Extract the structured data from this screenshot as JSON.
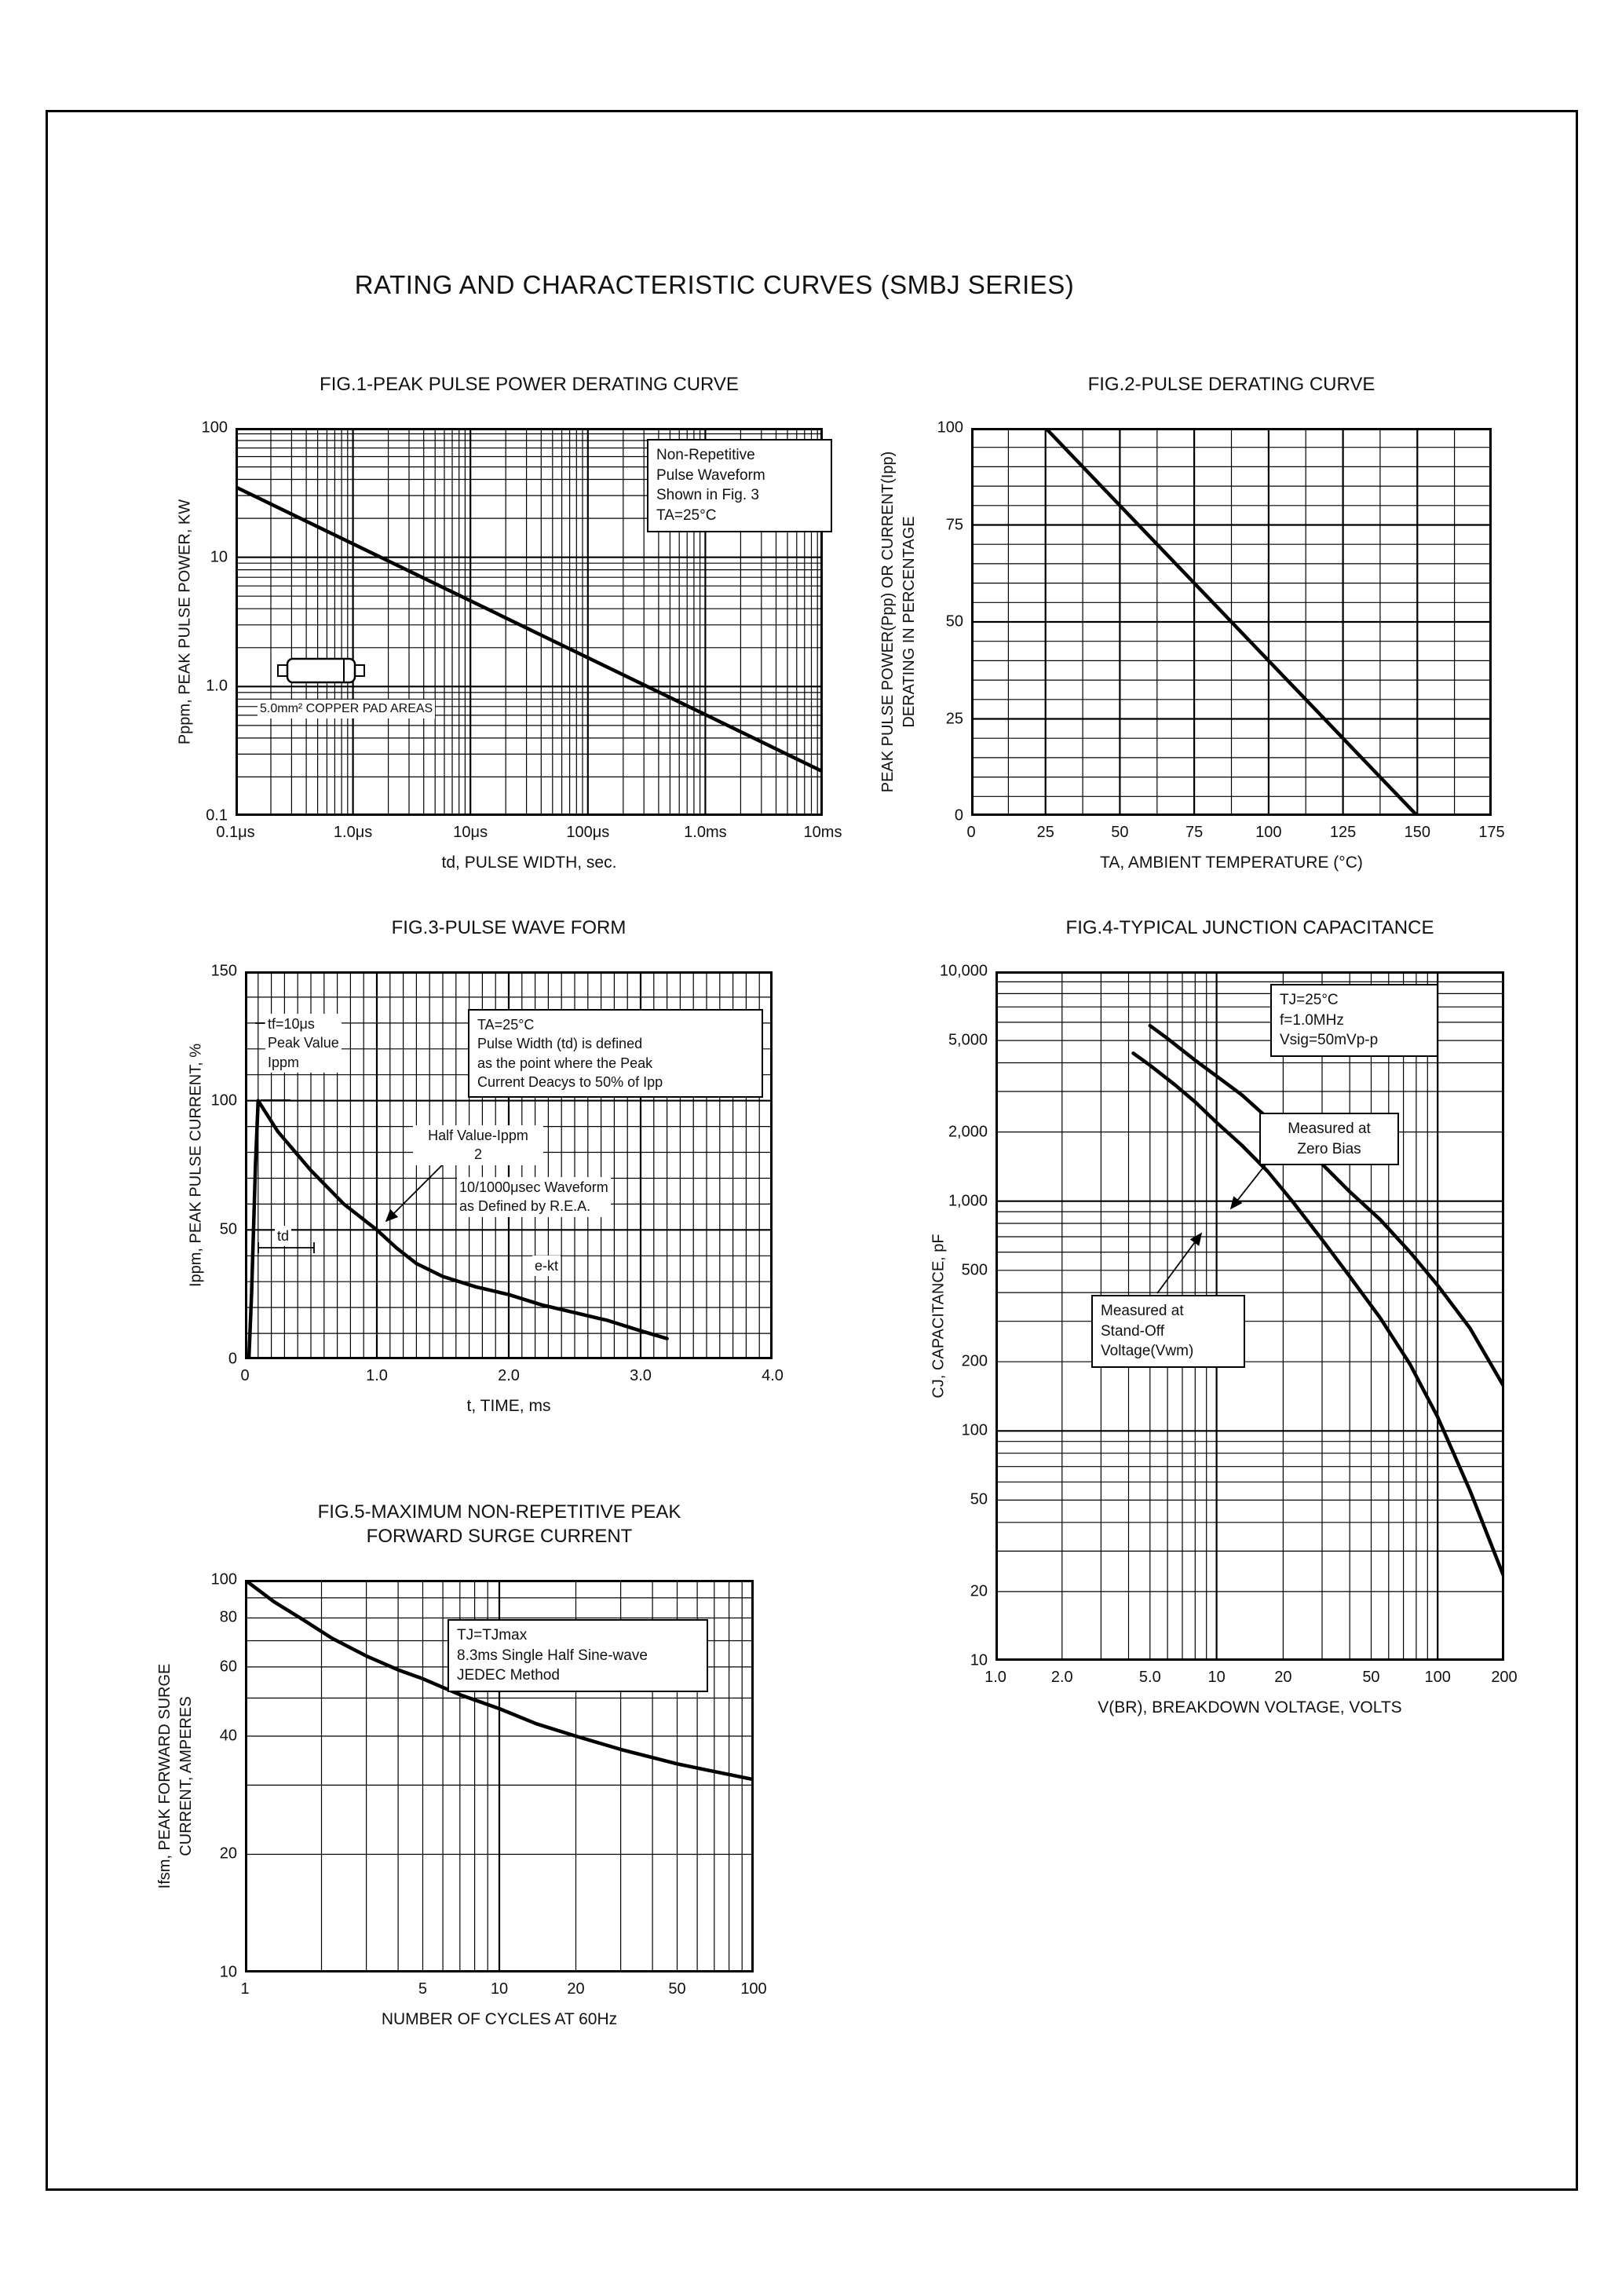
{
  "page": {
    "title": "RATING AND CHARACTERISTIC CURVES (SMBJ SERIES)"
  },
  "chart_data": [
    {
      "id": "fig1",
      "type": "line",
      "title": "FIG.1-PEAK PULSE POWER DERATING CURVE",
      "xlabel": "td, PULSE WIDTH, sec.",
      "ylabel": "Pppm, PEAK PULSE POWER, KW",
      "xscale": "log",
      "yscale": "log",
      "xlim": [
        1e-07,
        0.01
      ],
      "ylim": [
        0.1,
        100
      ],
      "grid": "on",
      "xticks": [
        {
          "v": 1e-07,
          "label": "0.1μs"
        },
        {
          "v": 1e-06,
          "label": "1.0μs"
        },
        {
          "v": 1e-05,
          "label": "10μs"
        },
        {
          "v": 0.0001,
          "label": "100μs"
        },
        {
          "v": 0.001,
          "label": "1.0ms"
        },
        {
          "v": 0.01,
          "label": "10ms"
        }
      ],
      "yticks": [
        {
          "v": 100,
          "label": "100"
        },
        {
          "v": 10,
          "label": "10"
        },
        {
          "v": 1,
          "label": "1.0"
        },
        {
          "v": 0.1,
          "label": "0.1"
        }
      ],
      "series": [
        {
          "name": "peak-pulse-power",
          "points": [
            [
              1e-07,
              35
            ],
            [
              0.01,
              0.22
            ]
          ]
        }
      ],
      "annotations": [
        {
          "name": "waveform-note",
          "text": "Non-Repetitive\nPulse Waveform\nShown in Fig. 3\nTA=25°C"
        },
        {
          "name": "pad-area-note",
          "text": "5.0mm² COPPER PAD AREAS"
        }
      ]
    },
    {
      "id": "fig2",
      "type": "line",
      "title": "FIG.2-PULSE DERATING CURVE",
      "xlabel": "TA, AMBIENT TEMPERATURE (°C)",
      "ylabel": "PEAK PULSE POWER(Ppp) OR CURRENT(Ipp)\nDERATING IN PERCENTAGE",
      "xscale": "linear",
      "yscale": "linear",
      "xlim": [
        0,
        175
      ],
      "ylim": [
        0,
        100
      ],
      "xgrid_step": 12.5,
      "ygrid_step": 5,
      "grid": "on",
      "xticks": [
        {
          "v": 0,
          "label": "0"
        },
        {
          "v": 25,
          "label": "25"
        },
        {
          "v": 50,
          "label": "50"
        },
        {
          "v": 75,
          "label": "75"
        },
        {
          "v": 100,
          "label": "100"
        },
        {
          "v": 125,
          "label": "125"
        },
        {
          "v": 150,
          "label": "150"
        },
        {
          "v": 175,
          "label": "175"
        }
      ],
      "yticks": [
        {
          "v": 100,
          "label": "100"
        },
        {
          "v": 75,
          "label": "75"
        },
        {
          "v": 50,
          "label": "50"
        },
        {
          "v": 25,
          "label": "25"
        },
        {
          "v": 0,
          "label": "0"
        }
      ],
      "series": [
        {
          "name": "derating",
          "points": [
            [
              0,
              100
            ],
            [
              25,
              100
            ],
            [
              150,
              0
            ]
          ]
        }
      ],
      "annotations": []
    },
    {
      "id": "fig3",
      "type": "line",
      "title": "FIG.3-PULSE WAVE FORM",
      "xlabel": "t, TIME, ms",
      "ylabel": "Ippm, PEAK PULSE CURRENT, %",
      "xscale": "linear",
      "yscale": "linear",
      "xlim": [
        0,
        4
      ],
      "ylim": [
        0,
        150
      ],
      "xgrid_step": 0.1,
      "ygrid_step": 10,
      "grid": "on",
      "xticks": [
        {
          "v": 0,
          "label": "0"
        },
        {
          "v": 1,
          "label": "1.0"
        },
        {
          "v": 2,
          "label": "2.0"
        },
        {
          "v": 3,
          "label": "3.0"
        },
        {
          "v": 4,
          "label": "4.0"
        }
      ],
      "yticks": [
        {
          "v": 150,
          "label": "150"
        },
        {
          "v": 100,
          "label": "100"
        },
        {
          "v": 50,
          "label": "50"
        },
        {
          "v": 0,
          "label": "0"
        }
      ],
      "series": [
        {
          "name": "pulse-waveform",
          "points": [
            [
              0.03,
              0
            ],
            [
              0.05,
              25
            ],
            [
              0.08,
              75
            ],
            [
              0.1,
              100
            ],
            [
              0.25,
              88
            ],
            [
              0.5,
              73
            ],
            [
              0.75,
              60
            ],
            [
              1,
              50
            ],
            [
              1.15,
              43
            ],
            [
              1.3,
              37
            ],
            [
              1.5,
              32
            ],
            [
              1.75,
              28
            ],
            [
              2,
              25
            ],
            [
              2.25,
              21
            ],
            [
              2.5,
              18
            ],
            [
              2.75,
              15
            ],
            [
              3,
              11
            ],
            [
              3.2,
              8
            ]
          ]
        }
      ],
      "annotations": [
        {
          "name": "tf-note",
          "text": "tf=10μs\nPeak Value\nIppm"
        },
        {
          "name": "pulse-width-note",
          "text": "TA=25°C\nPulse Width (td) is defined\nas the point where the Peak\nCurrent Deacys to 50% of Ipp"
        },
        {
          "name": "half-value-note",
          "text": "Half Value-Ippm\n2"
        },
        {
          "name": "rea-note",
          "text": "10/1000μsec Waveform\nas Defined by R.E.A."
        },
        {
          "name": "td-note",
          "text": "td"
        },
        {
          "name": "decay-note",
          "text": "e-kt"
        }
      ]
    },
    {
      "id": "fig4",
      "type": "line",
      "title": "FIG.4-TYPICAL JUNCTION CAPACITANCE",
      "xlabel": "V(BR), BREAKDOWN VOLTAGE, VOLTS",
      "ylabel": "CJ, CAPACITANCE, pF",
      "xscale": "log",
      "yscale": "log",
      "xlim": [
        1,
        200
      ],
      "ylim": [
        10,
        10000
      ],
      "grid": "on",
      "xticks": [
        {
          "v": 1,
          "label": "1.0"
        },
        {
          "v": 2,
          "label": "2.0"
        },
        {
          "v": 5,
          "label": "5.0"
        },
        {
          "v": 10,
          "label": "10"
        },
        {
          "v": 20,
          "label": "20"
        },
        {
          "v": 50,
          "label": "50"
        },
        {
          "v": 100,
          "label": "100"
        },
        {
          "v": 200,
          "label": "200"
        }
      ],
      "yticks": [
        {
          "v": 10000,
          "label": "10,000"
        },
        {
          "v": 5000,
          "label": "5,000"
        },
        {
          "v": 2000,
          "label": "2,000"
        },
        {
          "v": 1000,
          "label": "1,000"
        },
        {
          "v": 500,
          "label": "500"
        },
        {
          "v": 200,
          "label": "200"
        },
        {
          "v": 100,
          "label": "100"
        },
        {
          "v": 50,
          "label": "50"
        },
        {
          "v": 20,
          "label": "20"
        },
        {
          "v": 10,
          "label": "10"
        }
      ],
      "series": [
        {
          "name": "zero-bias",
          "points": [
            [
              5,
              5800
            ],
            [
              6,
              5100
            ],
            [
              8,
              4100
            ],
            [
              10,
              3500
            ],
            [
              13,
              2900
            ],
            [
              17,
              2300
            ],
            [
              22,
              1900
            ],
            [
              30,
              1450
            ],
            [
              40,
              1100
            ],
            [
              55,
              830
            ],
            [
              75,
              600
            ],
            [
              100,
              430
            ],
            [
              140,
              280
            ],
            [
              200,
              155
            ]
          ]
        },
        {
          "name": "stand-off-voltage",
          "points": [
            [
              4.2,
              4400
            ],
            [
              5,
              3900
            ],
            [
              6.5,
              3200
            ],
            [
              8,
              2700
            ],
            [
              10,
              2200
            ],
            [
              13,
              1750
            ],
            [
              17,
              1350
            ],
            [
              22,
              1000
            ],
            [
              30,
              680
            ],
            [
              40,
              470
            ],
            [
              55,
              310
            ],
            [
              75,
              195
            ],
            [
              100,
              115
            ],
            [
              140,
              55
            ],
            [
              200,
              23
            ]
          ]
        }
      ],
      "annotations": [
        {
          "name": "conditions-note",
          "text": "TJ=25°C\nf=1.0MHz\nVsig=50mVp-p"
        },
        {
          "name": "zero-bias-note",
          "text": "Measured at\nZero Bias"
        },
        {
          "name": "stand-off-note",
          "text": "Measured at\nStand-Off\nVoltage(Vwm)"
        }
      ]
    },
    {
      "id": "fig5",
      "type": "line",
      "title": "FIG.5-MAXIMUM NON-REPETITIVE PEAK\nFORWARD SURGE CURRENT",
      "xlabel": "NUMBER OF CYCLES AT 60Hz",
      "ylabel": "Ifsm, PEAK FORWARD SURGE\nCURRENT, AMPERES",
      "xscale": "log",
      "yscale": "log",
      "xlim": [
        1,
        100
      ],
      "ylim": [
        10,
        100
      ],
      "grid": "on",
      "xticks": [
        {
          "v": 1,
          "label": "1"
        },
        {
          "v": 5,
          "label": "5"
        },
        {
          "v": 10,
          "label": "10"
        },
        {
          "v": 20,
          "label": "20"
        },
        {
          "v": 50,
          "label": "50"
        },
        {
          "v": 100,
          "label": "100"
        }
      ],
      "yticks": [
        {
          "v": 100,
          "label": "100"
        },
        {
          "v": 80,
          "label": "80"
        },
        {
          "v": 60,
          "label": "60"
        },
        {
          "v": 40,
          "label": "40"
        },
        {
          "v": 20,
          "label": "20"
        },
        {
          "v": 10,
          "label": "10"
        }
      ],
      "series": [
        {
          "name": "surge-current",
          "points": [
            [
              1,
              100
            ],
            [
              1.3,
              88
            ],
            [
              1.7,
              79
            ],
            [
              2.2,
              71
            ],
            [
              3,
              64
            ],
            [
              4,
              59
            ],
            [
              5,
              56
            ],
            [
              7,
              51
            ],
            [
              10,
              47
            ],
            [
              14,
              43
            ],
            [
              20,
              40
            ],
            [
              30,
              37
            ],
            [
              50,
              34
            ],
            [
              70,
              32.5
            ],
            [
              100,
              31
            ]
          ]
        }
      ],
      "annotations": [
        {
          "name": "conditions-note",
          "text": "TJ=TJmax\n8.3ms Single Half Sine-wave\nJEDEC Method"
        }
      ]
    }
  ]
}
